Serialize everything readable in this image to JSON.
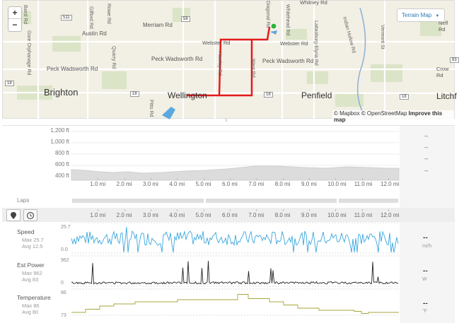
{
  "map": {
    "zoom_in": "+",
    "zoom_out": "−",
    "terrain_button": "Terrain Map",
    "attribution_mapbox": "© Mapbox",
    "attribution_osm": "© OpenStreetMap",
    "attribution_improve": "Improve this map",
    "labels": {
      "baird": "Baird Rd",
      "gore": "Gore Orphanage Rd",
      "gifford": "Gifford Rd",
      "rowe": "Rowe Rd",
      "austin": "Austin Rd",
      "merriam": "Merriam Rd",
      "quarry": "Quarry Rd",
      "pitts": "Pitts Rd",
      "webster_west": "Webster Rd",
      "webster_east": "Webster Rd",
      "peck_west": "Peck Wadsworth Rd",
      "peck_mid": "Peck Wadsworth Rd",
      "peck_east": "Peck Wadsworth Rd",
      "hawley": "Hawley Rd",
      "west_rd": "West Rd",
      "diagonal": "Diagonal Rd",
      "whitehead": "Whitehead Rd",
      "lattasburg": "Lattasburg-Elyria Rd",
      "indian_hollow": "Indian Hollow Rd",
      "vermont": "Vermont St",
      "nelf": "Nelf Rd",
      "crow": "Crow Rd",
      "whitney": "Whitney Rd",
      "brighton": "Brighton",
      "wellington": "Wellington",
      "penfield": "Penfield",
      "litchfield": "Litchf",
      "r511": "511",
      "r58": "58",
      "r18a": "18",
      "r18b": "18",
      "r18c": "18",
      "r18d": "18",
      "r83": "83"
    }
  },
  "elevation": {
    "y_ticks": [
      "1,200 ft",
      "1,000 ft",
      "800 ft",
      "600 ft",
      "400 ft"
    ],
    "right_dashes": [
      "--",
      "--",
      "--",
      "--"
    ]
  },
  "x_ticks": [
    "1.0 mi",
    "2.0 mi",
    "3.0 mi",
    "4.0 mi",
    "5.0 mi",
    "6.0 mi",
    "7.0 mi",
    "8.0 mi",
    "9.0 mi",
    "10.0 mi",
    "11.0 mi",
    "12.0 mi"
  ],
  "laps_label": "Laps",
  "metrics": {
    "speed": {
      "label": "Speed",
      "max": "Max 25.7",
      "avg": "Avg 12.5",
      "axis_top": "25.7",
      "axis_bottom": "0.0",
      "value": "--",
      "unit": "mi/h",
      "color": "#3aa6dd"
    },
    "power": {
      "label": "Est Power",
      "max": "Max 962",
      "avg": "Avg 83",
      "axis_top": "962",
      "axis_bottom": "0",
      "value": "--",
      "unit": "W",
      "color": "#222222"
    },
    "temp": {
      "label": "Temperature",
      "max": "Max 86",
      "avg": "Avg 80",
      "axis_top": "86",
      "axis_bottom": "73",
      "value": "--",
      "unit": "°F",
      "color": "#a7a63b"
    }
  },
  "colors": {
    "route": "#e31b1b",
    "water": "#5aa8e0",
    "marker": "#2db33a"
  }
}
